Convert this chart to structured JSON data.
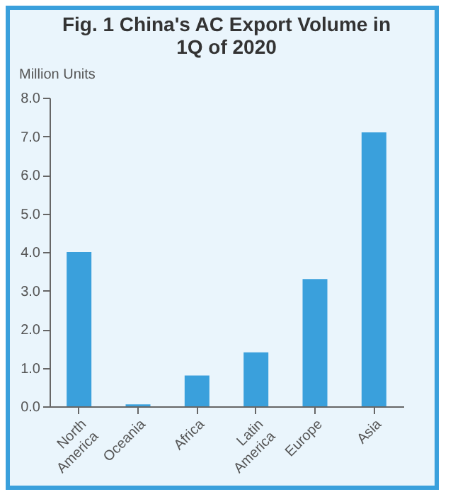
{
  "chart_data": {
    "type": "bar",
    "title": "Fig. 1 China's AC Export Volume in 1Q of 2020",
    "ylabel": "Million Units",
    "categories": [
      "North America",
      "Oceania",
      "Africa",
      "Latin America",
      "Europe",
      "Asia"
    ],
    "values": [
      4.0,
      0.05,
      0.8,
      1.4,
      3.3,
      7.1
    ],
    "color": "#3aa0dc",
    "ylim": [
      0,
      8
    ],
    "yticks": [
      {
        "value": 0,
        "label": "0.0"
      },
      {
        "value": 1,
        "label": "1.0"
      },
      {
        "value": 2,
        "label": "2.0"
      },
      {
        "value": 3,
        "label": "3.0"
      },
      {
        "value": 4,
        "label": "4.0"
      },
      {
        "value": 5,
        "label": "5.0"
      },
      {
        "value": 6,
        "label": "6.0"
      },
      {
        "value": 7,
        "label": "7.0"
      },
      {
        "value": 8,
        "label": "8.0"
      }
    ],
    "grid": false
  }
}
